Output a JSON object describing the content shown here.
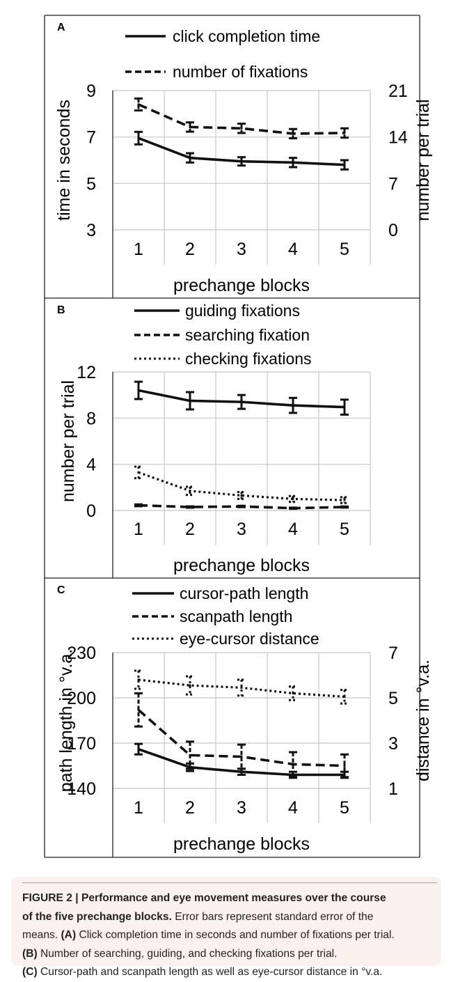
{
  "chart_data": [
    {
      "panel": "A",
      "type": "line",
      "categories": [
        "1",
        "2",
        "3",
        "4",
        "5"
      ],
      "xlabel": "prechange blocks",
      "ylabel": "time in seconds",
      "y2label": "number per trial",
      "ylim": [
        3,
        9
      ],
      "yticks": [
        "3",
        "5",
        "7",
        "9"
      ],
      "y2lim": [
        0,
        21
      ],
      "y2ticks": [
        "0",
        "7",
        "14",
        "21"
      ],
      "grid": true,
      "legend_position": "top",
      "series": [
        {
          "name": "click completion time",
          "axis": "left",
          "style": "solid",
          "values": [
            6.95,
            6.1,
            5.95,
            5.9,
            5.8
          ],
          "errors": [
            0.27,
            0.2,
            0.18,
            0.2,
            0.2
          ]
        },
        {
          "name": "number of fixations",
          "axis": "right",
          "style": "dashed",
          "values": [
            18.9,
            15.5,
            15.3,
            14.5,
            14.6
          ],
          "errors": [
            0.9,
            0.7,
            0.7,
            0.7,
            0.7
          ]
        }
      ]
    },
    {
      "panel": "B",
      "type": "line",
      "categories": [
        "1",
        "2",
        "3",
        "4",
        "5"
      ],
      "xlabel": "prechange blocks",
      "ylabel": "number per trial",
      "ylim": [
        0,
        12
      ],
      "yticks": [
        "0",
        "4",
        "8",
        "12"
      ],
      "grid": true,
      "legend_position": "top",
      "series": [
        {
          "name": "guiding fixations",
          "style": "solid",
          "values": [
            10.4,
            9.5,
            9.4,
            9.1,
            8.95
          ],
          "errors": [
            0.75,
            0.75,
            0.6,
            0.65,
            0.65
          ]
        },
        {
          "name": "searching fixation",
          "style": "dashed",
          "values": [
            0.45,
            0.3,
            0.35,
            0.2,
            0.3
          ],
          "errors": [
            0.08,
            0.06,
            0.06,
            0.05,
            0.05
          ]
        },
        {
          "name": "checking fixations",
          "style": "dotted",
          "values": [
            3.3,
            1.7,
            1.3,
            1.0,
            0.9
          ],
          "errors": [
            0.5,
            0.35,
            0.3,
            0.25,
            0.25
          ]
        }
      ]
    },
    {
      "panel": "C",
      "type": "line",
      "categories": [
        "1",
        "2",
        "3",
        "4",
        "5"
      ],
      "xlabel": "prechange blocks",
      "ylabel": "path length in °v.a.",
      "y2label": "distance in °v.a.",
      "ylim": [
        140,
        230
      ],
      "yticks": [
        "140",
        "170",
        "200",
        "230"
      ],
      "y2lim": [
        1,
        7
      ],
      "y2ticks": [
        "1",
        "3",
        "5",
        "7"
      ],
      "grid": true,
      "legend_position": "top",
      "series": [
        {
          "name": "cursor-path length",
          "axis": "left",
          "style": "solid",
          "values": [
            166,
            154,
            151,
            149,
            149
          ],
          "errors": [
            3.5,
            2.5,
            2,
            2,
            2
          ]
        },
        {
          "name": "scanpath length",
          "axis": "left",
          "style": "dashed",
          "values": [
            192,
            162,
            161,
            156,
            155
          ],
          "errors": [
            11,
            9,
            8,
            8,
            7.5
          ]
        },
        {
          "name": "eye-cursor distance",
          "axis": "right",
          "style": "dotted",
          "values": [
            5.8,
            5.55,
            5.45,
            5.2,
            5.05
          ],
          "errors": [
            0.4,
            0.4,
            0.35,
            0.3,
            0.3
          ]
        }
      ]
    }
  ],
  "caption": {
    "label": "FIGURE 2 | Performance and eye movement measures over the course",
    "label_cont": "of the five prechange blocks.",
    "line2_rest": " Error bars represent standard error of the",
    "line3": "means.",
    "line3_bold": "(A)",
    "line3_rest": " Click completion time in seconds and number of fixations per trial.",
    "line4_bold": "(B)",
    "line4_rest": " Number of searching, guiding, and checking fixations per trial.",
    "line5_bold": "(C)",
    "line5_rest": " Cursor-path and scanpath length as well as eye-cursor distance in °v.a."
  },
  "colors": {
    "line": "#111111",
    "grid": "#c8c8c8",
    "frame": "#222222",
    "caption_bg": "#fbf1ef",
    "caption_rule": "#d08a78"
  }
}
